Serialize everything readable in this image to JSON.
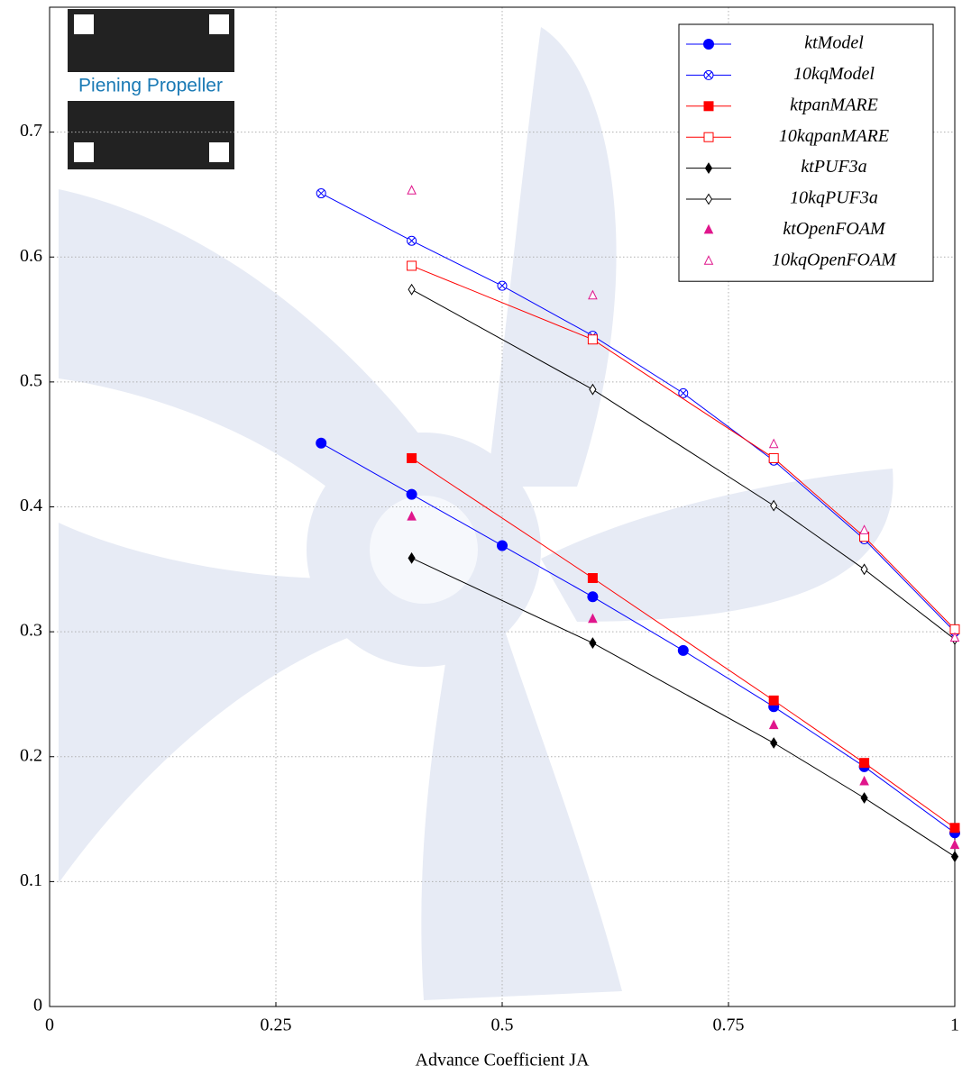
{
  "chart_data": {
    "type": "line",
    "xlabel": "Advance Coefficient JA",
    "logo_text": "Piening Propeller",
    "xlim": [
      0,
      1
    ],
    "ylim": [
      0,
      0.8
    ],
    "xticks": [
      0,
      0.25,
      0.5,
      0.75,
      1
    ],
    "yticks": [
      0,
      0.1,
      0.2,
      0.3,
      0.4,
      0.5,
      0.6,
      0.7
    ],
    "grid": true,
    "legend": "upper right",
    "series": [
      {
        "name": "ktModel",
        "color": "#0000ff",
        "marker": "circle",
        "line": true,
        "x": [
          0.3,
          0.4,
          0.5,
          0.6,
          0.7,
          0.8,
          0.9,
          1.0
        ],
        "values": [
          0.451,
          0.41,
          0.369,
          0.328,
          0.285,
          0.24,
          0.192,
          0.139
        ]
      },
      {
        "name": "10kqModel",
        "color": "#0000ff",
        "marker": "circle-x",
        "line": true,
        "x": [
          0.3,
          0.4,
          0.5,
          0.6,
          0.7,
          0.8,
          0.9,
          1.0
        ],
        "values": [
          0.651,
          0.613,
          0.577,
          0.537,
          0.491,
          0.437,
          0.374,
          0.3
        ]
      },
      {
        "name": "ktpanMARE",
        "color": "#ff0000",
        "marker": "square",
        "line": true,
        "x": [
          0.4,
          0.6,
          0.8,
          0.9,
          1.0
        ],
        "values": [
          0.439,
          0.343,
          0.245,
          0.195,
          0.143
        ]
      },
      {
        "name": "10kqpanMARE",
        "color": "#ff0000",
        "marker": "square-open",
        "line": true,
        "x": [
          0.4,
          0.6,
          0.8,
          0.9,
          1.0
        ],
        "values": [
          0.593,
          0.534,
          0.439,
          0.376,
          0.302
        ]
      },
      {
        "name": "ktPUF3a",
        "color": "#000000",
        "marker": "diamond",
        "line": true,
        "x": [
          0.4,
          0.6,
          0.8,
          0.9,
          1.0
        ],
        "values": [
          0.359,
          0.291,
          0.211,
          0.167,
          0.12
        ]
      },
      {
        "name": "10kqPUF3a",
        "color": "#000000",
        "marker": "diamond-open",
        "line": true,
        "x": [
          0.4,
          0.6,
          0.8,
          0.9,
          1.0
        ],
        "values": [
          0.574,
          0.494,
          0.401,
          0.35,
          0.294
        ]
      },
      {
        "name": "ktOpenFOAM",
        "color": "#e0168c",
        "marker": "triangle",
        "line": false,
        "x": [
          0.4,
          0.6,
          0.8,
          0.9,
          1.0
        ],
        "values": [
          0.392,
          0.31,
          0.225,
          0.18,
          0.129
        ]
      },
      {
        "name": "10kqOpenFOAM",
        "color": "#e0168c",
        "marker": "triangle-open",
        "line": false,
        "x": [
          0.4,
          0.6,
          0.8,
          0.9,
          1.0
        ],
        "values": [
          0.653,
          0.569,
          0.45,
          0.381,
          0.295
        ]
      }
    ]
  }
}
